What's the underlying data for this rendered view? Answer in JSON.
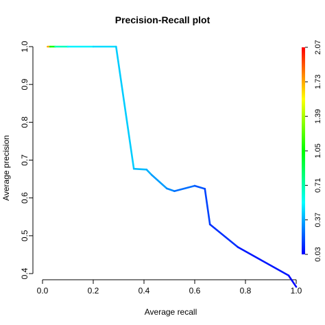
{
  "chart_data": {
    "type": "line",
    "title": "Precision-Recall plot",
    "xlabel": "Average recall",
    "ylabel": "Average precision",
    "xlim": [
      0,
      1.0
    ],
    "ylim": [
      0.36,
      1.01
    ],
    "x_ticks": [
      "0.0",
      "0.2",
      "0.4",
      "0.6",
      "0.8",
      "1.0"
    ],
    "y_ticks": [
      "0.4",
      "0.5",
      "0.6",
      "0.7",
      "0.8",
      "0.9",
      "1.0"
    ],
    "grid": false,
    "legend": "none",
    "series": [
      {
        "x": [
          0.02,
          0.03,
          0.05,
          0.1,
          0.2,
          0.29,
          0.36,
          0.41,
          0.43,
          0.49,
          0.52,
          0.6,
          0.64,
          0.66,
          0.77,
          0.97,
          1.0
        ],
        "y": [
          1.0,
          1.0,
          1.0,
          1.0,
          1.0,
          1.0,
          0.677,
          0.675,
          0.661,
          0.625,
          0.618,
          0.632,
          0.624,
          0.53,
          0.47,
          0.395,
          0.365
        ],
        "color_value": [
          2.07,
          1.39,
          0.8,
          0.55,
          0.48,
          0.46,
          0.42,
          0.39,
          0.37,
          0.32,
          0.28,
          0.22,
          0.18,
          0.15,
          0.1,
          0.05,
          0.03
        ]
      }
    ],
    "colorbar": {
      "range": [
        0.03,
        2.07
      ],
      "tick_labels": [
        "0.03",
        "0.37",
        "0.71",
        "1.05",
        "1.39",
        "1.73",
        "2.07"
      ],
      "colors": [
        "#0000ff",
        "#00ffff",
        "#00ff00",
        "#ffff00",
        "#ff0000"
      ]
    }
  }
}
